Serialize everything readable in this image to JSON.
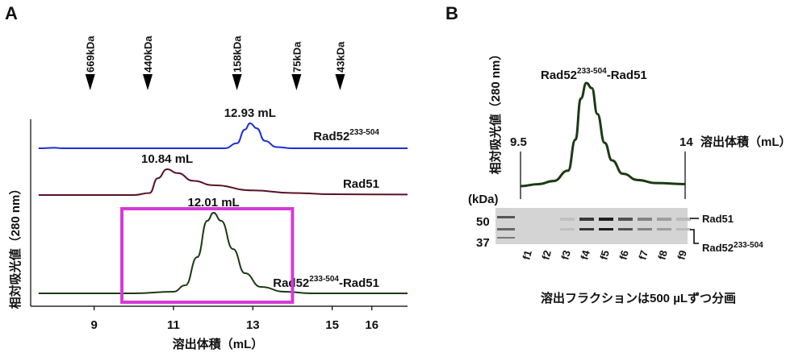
{
  "panel_a": {
    "label": "A",
    "ylabel": "相対吸光値（280 nm）",
    "xlabel": "溶出体積（mL）",
    "markers": [
      {
        "label": "669kDa",
        "x": 8.9
      },
      {
        "label": "440kDa",
        "x": 10.35
      },
      {
        "label": "158kDa",
        "x": 12.6
      },
      {
        "label": "75kDa",
        "x": 14.1
      },
      {
        "label": "43kDa",
        "x": 15.2
      }
    ],
    "annotations": [
      {
        "text": "12.93 mL",
        "series": 0
      },
      {
        "text": "10.84 mL",
        "series": 1
      },
      {
        "text": "12.01 mL",
        "series": 2
      }
    ]
  },
  "panel_b": {
    "label": "B",
    "ylabel": "相対吸光値（280 nm）",
    "title_main": "Rad52",
    "title_sup": "233-504",
    "title_tail": "-Rad51",
    "x_start_label": "9.5",
    "x_end_label": "14",
    "x_end_suffix": "溶出体積（mL）",
    "kda_label": "(kDa)",
    "ladder": [
      "50",
      "37"
    ],
    "fractions": [
      "f1",
      "f2",
      "f3",
      "f4",
      "f5",
      "f6",
      "f7",
      "f8",
      "f9"
    ],
    "band_rad51": "Rad51",
    "band_rad52_main": "Rad52",
    "band_rad52_sup": "233-504",
    "caption": "溶出フラクションは500 µLずつ分画"
  },
  "chart_data": [
    {
      "type": "line",
      "title": "",
      "xlabel": "溶出体積（mL）",
      "ylabel": "相対吸光値（280 nm）",
      "xlim": [
        7.4,
        16.9
      ],
      "xticks": [
        9,
        11,
        13,
        15,
        16
      ],
      "grid": false,
      "legend": "none",
      "series": [
        {
          "name": "Rad52233-504",
          "name_main": "Rad52",
          "name_sup": "233-504",
          "name_tail": "",
          "color": "#1c2fd6",
          "peak_x": 12.93,
          "peak_height": 1.0,
          "x": [
            7.6,
            8.0,
            8.2,
            9.0,
            11.0,
            12.3,
            12.6,
            12.8,
            12.93,
            13.1,
            13.3,
            13.6,
            14.0,
            16.9
          ],
          "y": [
            0.0,
            0.02,
            0.0,
            0.0,
            0.0,
            0.0,
            0.2,
            0.75,
            1.0,
            0.8,
            0.3,
            0.05,
            0.0,
            0.0
          ]
        },
        {
          "name": "Rad51",
          "name_main": "Rad51",
          "name_sup": "",
          "name_tail": "",
          "color": "#5a1226",
          "peak_x": 10.84,
          "peak_height": 1.0,
          "x": [
            7.6,
            9.0,
            10.0,
            10.4,
            10.6,
            10.84,
            11.1,
            11.5,
            12.0,
            13.0,
            14.0,
            15.0,
            16.9
          ],
          "y": [
            0.0,
            0.0,
            0.0,
            0.08,
            0.65,
            1.0,
            0.85,
            0.55,
            0.38,
            0.18,
            0.08,
            0.03,
            0.02
          ]
        },
        {
          "name": "Rad52233-504-Rad51",
          "name_main": "Rad52",
          "name_sup": "233-504",
          "name_tail": "-Rad51",
          "color": "#1b3a14",
          "peak_x": 12.01,
          "peak_height": 1.0,
          "x": [
            7.6,
            10.0,
            11.0,
            11.3,
            11.6,
            11.85,
            12.01,
            12.2,
            12.5,
            12.8,
            13.2,
            13.8,
            14.5,
            16.9
          ],
          "y": [
            0.0,
            0.0,
            0.02,
            0.1,
            0.45,
            0.9,
            1.0,
            0.9,
            0.55,
            0.25,
            0.08,
            0.02,
            0.0,
            0.0
          ]
        }
      ],
      "highlight_box": {
        "x_range": [
          9.7,
          14.0
        ],
        "color": "#d63ad6"
      }
    },
    {
      "type": "line",
      "title": "Rad52233-504-Rad51",
      "xlabel": "溶出体積（mL）",
      "ylabel": "相対吸光値（280 nm）",
      "xlim": [
        9.5,
        14
      ],
      "grid": false,
      "series": [
        {
          "name": "",
          "color": "#1b3a14",
          "x": [
            9.5,
            10.0,
            10.4,
            10.8,
            11.0,
            11.15,
            11.3,
            11.45,
            11.6,
            11.8,
            12.0,
            12.3,
            12.7,
            13.2,
            14.0
          ],
          "y": [
            0.0,
            0.02,
            0.05,
            0.15,
            0.45,
            0.85,
            1.0,
            0.95,
            0.7,
            0.42,
            0.25,
            0.12,
            0.06,
            0.03,
            0.02
          ]
        }
      ]
    }
  ]
}
